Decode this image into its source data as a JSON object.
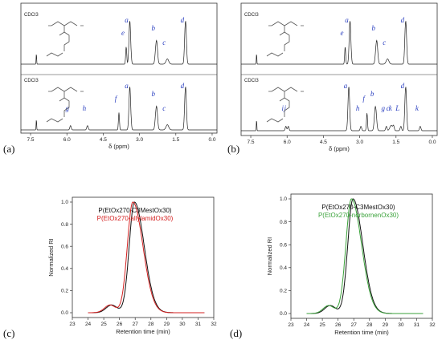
{
  "panel_labels": {
    "a": "(a)",
    "b": "(b)",
    "c": "(c)",
    "d": "(d)"
  },
  "chart_data": [
    {
      "type": "line",
      "panel": "(a)",
      "xlabel": "δ (ppm)",
      "x_ticks": [
        "7.5",
        "6.0",
        "4.5",
        "3.0",
        "1.5",
        "0.0"
      ],
      "xlim": [
        7.9,
        -0.2
      ],
      "spectra": [
        {
          "solvent": "CDCl3",
          "peaks": [
            {
              "label": "e",
              "ppm": 3.55
            },
            {
              "label": "a",
              "ppm": 3.4
            },
            {
              "label": "b",
              "ppm": 2.3
            },
            {
              "label": "c",
              "ppm": 1.85
            },
            {
              "label": "d",
              "ppm": 1.1
            }
          ]
        },
        {
          "solvent": "CDCl3",
          "peaks": [
            {
              "label": "g",
              "ppm": 5.85
            },
            {
              "label": "h",
              "ppm": 5.15
            },
            {
              "label": "f",
              "ppm": 3.85
            },
            {
              "label": "a",
              "ppm": 3.4
            },
            {
              "label": "b",
              "ppm": 2.3
            },
            {
              "label": "c",
              "ppm": 1.85
            },
            {
              "label": "d",
              "ppm": 1.1
            }
          ]
        }
      ]
    },
    {
      "type": "line",
      "panel": "(b)",
      "xlabel": "δ (ppm)",
      "x_ticks": [
        "7.5",
        "6.0",
        "4.5",
        "3.0",
        "1.5",
        "0.0"
      ],
      "xlim": [
        7.9,
        -0.2
      ],
      "spectra": [
        {
          "solvent": "CDCl3",
          "peaks": [
            {
              "label": "e",
              "ppm": 3.6
            },
            {
              "label": "a",
              "ppm": 3.4
            },
            {
              "label": "b",
              "ppm": 2.3
            },
            {
              "label": "c",
              "ppm": 1.85
            },
            {
              "label": "d",
              "ppm": 1.1
            }
          ]
        },
        {
          "solvent": "CDCl3",
          "peaks": [
            {
              "label": "i",
              "ppm": 6.05
            },
            {
              "label": "j",
              "ppm": 5.95
            },
            {
              "label": "a",
              "ppm": 3.45
            },
            {
              "label": "h",
              "ppm": 2.95
            },
            {
              "label": "f",
              "ppm": 2.7
            },
            {
              "label": "b",
              "ppm": 2.35
            },
            {
              "label": "g",
              "ppm": 1.9
            },
            {
              "label": "c",
              "ppm": 1.7
            },
            {
              "label": "k",
              "ppm": 1.6
            },
            {
              "label": "d",
              "ppm": 1.1
            },
            {
              "label": "L",
              "ppm": 1.3
            },
            {
              "label": "k",
              "ppm": 0.5
            }
          ]
        }
      ]
    },
    {
      "type": "line",
      "panel": "(c)",
      "xlabel": "Retention time (min)",
      "ylabel": "Normalized RI",
      "xlim": [
        23,
        32
      ],
      "ylim": [
        0,
        1.0
      ],
      "x_ticks": [
        23,
        24,
        25,
        26,
        27,
        28,
        29,
        30,
        31,
        32
      ],
      "y_ticks": [
        "0.0",
        "0.2",
        "0.4",
        "0.6",
        "0.8",
        "1.0"
      ],
      "series": [
        {
          "name": "P(EtOx270-C3MestOx30)",
          "color": "#111111",
          "peak": 26.95,
          "w_left": 0.33,
          "w_right": 0.62,
          "shoulder": 25.5
        },
        {
          "name": "P(EtOx270-allylamidOx30)",
          "color": "#d42020",
          "peak": 26.85,
          "w_left": 0.35,
          "w_right": 0.64,
          "shoulder": 25.4
        }
      ]
    },
    {
      "type": "line",
      "panel": "(d)",
      "xlabel": "Retention time (min)",
      "ylabel": "Normalized RI",
      "xlim": [
        23,
        32
      ],
      "ylim": [
        0,
        1.0
      ],
      "x_ticks": [
        23,
        24,
        25,
        26,
        27,
        28,
        29,
        30,
        31,
        32
      ],
      "y_ticks": [
        "0.0",
        "0.2",
        "0.4",
        "0.6",
        "0.8",
        "1.0"
      ],
      "series": [
        {
          "name": "P(EtOx270-C3MestOx30)",
          "color": "#111111",
          "peak": 26.95,
          "w_left": 0.33,
          "w_right": 0.62,
          "shoulder": 25.5
        },
        {
          "name": "P(EtOx270-norbornenOx30)",
          "color": "#3aa23a",
          "peak": 26.85,
          "w_left": 0.35,
          "w_right": 0.64,
          "shoulder": 25.4
        }
      ]
    }
  ]
}
